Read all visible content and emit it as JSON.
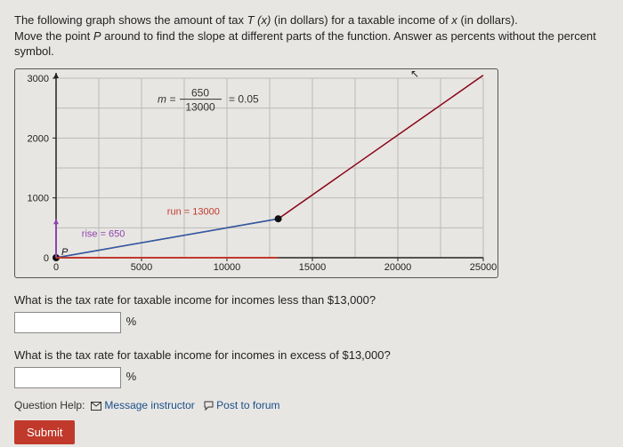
{
  "prompt": {
    "line1_a": "The following graph shows the amount of tax ",
    "line1_b": " (in dollars) for a taxable income of ",
    "line1_c": " (in dollars).",
    "line2_a": "Move the point ",
    "line2_b": " around to find the slope at different parts of the function. Answer as percents without the percent symbol.",
    "T": "T (x)",
    "x": "x",
    "P": "P"
  },
  "chart": {
    "type": "line",
    "background_color": "#e8e6e3",
    "grid_color": "#bdbab6",
    "axis_color": "#222222",
    "xlim": [
      0,
      25000
    ],
    "ylim": [
      0,
      3000
    ],
    "xticks": [
      0,
      5000,
      10000,
      15000,
      20000,
      25000
    ],
    "yticks": [
      0,
      1000,
      2000,
      3000
    ],
    "series": {
      "tax_line": {
        "color": "#8a0518",
        "width": 1.5,
        "points": [
          [
            0,
            0
          ],
          [
            13000,
            650
          ],
          [
            25000,
            3050
          ]
        ]
      },
      "segment_p": {
        "color": "#2b5faa",
        "width": 1.5,
        "end_markers": true,
        "points": [
          [
            0,
            0
          ],
          [
            13000,
            650
          ]
        ]
      },
      "run_marker": {
        "color": "#c0392b",
        "width": 2,
        "points": [
          [
            0,
            0
          ],
          [
            13000,
            0
          ]
        ],
        "arrow": false
      },
      "rise_marker": {
        "color": "#8e44ad",
        "width": 2,
        "points": [
          [
            0,
            0
          ],
          [
            0,
            650
          ]
        ],
        "arrow": true
      }
    },
    "labels": {
      "run": "run = 13000",
      "rise": "rise = 650",
      "slope_m": "m =",
      "slope_num": "650",
      "slope_den": "13000",
      "slope_val": "= 0.05",
      "P": "P"
    }
  },
  "q1": "What is the tax rate for taxable income for incomes less than $13,000?",
  "q2": "What is the tax rate for taxable income for incomes in excess of $13,000?",
  "pct": "%",
  "help": {
    "label": "Question Help:",
    "msg": "Message instructor",
    "post": "Post to forum"
  },
  "submit": "Submit"
}
